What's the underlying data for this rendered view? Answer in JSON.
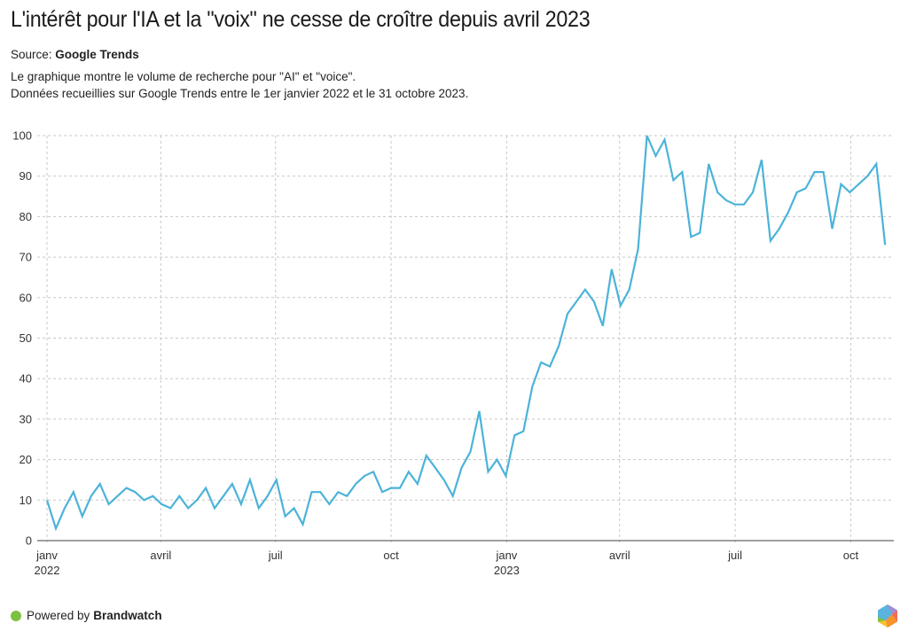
{
  "header": {
    "title": "L'intérêt pour l'IA et la \"voix\" ne cesse de croître depuis avril 2023",
    "source_label": "Source:",
    "source_name": "Google Trends",
    "description_line1": "Le graphique montre le volume de recherche pour \"AI\" et \"voice\".",
    "description_line2": "Données recueillies sur Google Trends entre le 1er janvier 2022 et le 31 octobre 2023."
  },
  "footer": {
    "powered_by": "Powered by",
    "brand": "Brandwatch",
    "dot_color": "#7cc242",
    "logo_icon": "brandwatch-hexagon-logo"
  },
  "chart_data": {
    "type": "line",
    "title": "L'intérêt pour l'IA et la \"voix\" ne cesse de croître depuis avril 2023",
    "xlabel": "",
    "ylabel": "",
    "x_start": "2022-01-01",
    "x_end": "2023-10-31",
    "x_interval": "weekly",
    "ylim": [
      0,
      100
    ],
    "yticks": [
      0,
      10,
      20,
      30,
      40,
      50,
      60,
      70,
      80,
      90,
      100
    ],
    "xticks": [
      {
        "label": "janv",
        "sublabel": "2022",
        "week_index": 0
      },
      {
        "label": "avril",
        "sublabel": "",
        "week_index": 12.9
      },
      {
        "label": "juil",
        "sublabel": "",
        "week_index": 25.9
      },
      {
        "label": "oct",
        "sublabel": "",
        "week_index": 39
      },
      {
        "label": "janv",
        "sublabel": "2023",
        "week_index": 52.1
      },
      {
        "label": "avril",
        "sublabel": "",
        "week_index": 64.9
      },
      {
        "label": "juil",
        "sublabel": "",
        "week_index": 78
      },
      {
        "label": "oct",
        "sublabel": "",
        "week_index": 91.1
      }
    ],
    "grid": true,
    "legend": "none",
    "series": [
      {
        "name": "AI + voice",
        "color": "#4cb3d9",
        "values": [
          10,
          3,
          8,
          12,
          6,
          11,
          14,
          9,
          11,
          13,
          12,
          10,
          11,
          9,
          8,
          11,
          8,
          10,
          13,
          8,
          11,
          14,
          9,
          15,
          8,
          11,
          15,
          6,
          8,
          4,
          12,
          12,
          9,
          12,
          11,
          14,
          16,
          17,
          12,
          13,
          13,
          17,
          14,
          21,
          18,
          15,
          11,
          18,
          22,
          32,
          17,
          20,
          16,
          26,
          27,
          38,
          44,
          43,
          48,
          56,
          59,
          62,
          59,
          53,
          67,
          58,
          62,
          72,
          100,
          95,
          99,
          89,
          91,
          75,
          76,
          93,
          86,
          84,
          83,
          83,
          86,
          94,
          74,
          77,
          81,
          86,
          87,
          91,
          91,
          77,
          88,
          86,
          88,
          90,
          93,
          73
        ]
      }
    ]
  }
}
